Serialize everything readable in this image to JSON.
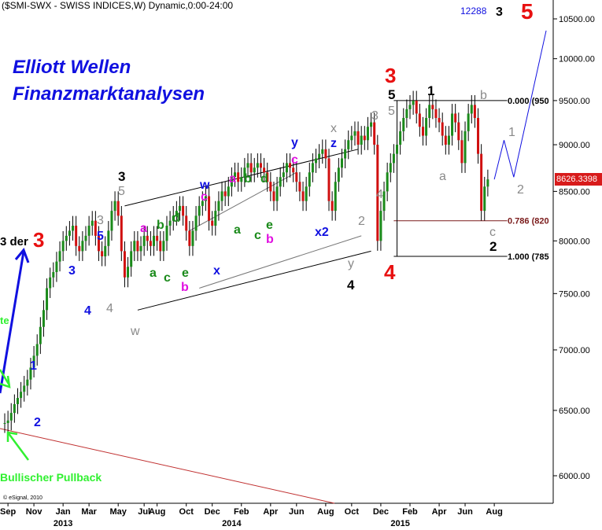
{
  "header": {
    "title": "($SMI-SWX - SWISS INDICES,W) Dynamic,0:00-24:00",
    "counter": "12288"
  },
  "titles": {
    "line1": "Elliott Wellen",
    "line2": "Finanzmarktanalysen"
  },
  "copyright": "© eSignal, 2010",
  "price_label": "8626.3398",
  "colors": {
    "black": "#000000",
    "red": "#e81010",
    "blue": "#1010e0",
    "gray": "#8a8a8a",
    "green": "#1a8a1a",
    "magenta": "#e010e0",
    "bright_green": "#30f030",
    "fib_line": "#7a1a1a",
    "trend_line": "#c03030"
  },
  "chart_data": {
    "type": "candlestick",
    "y_scale": "log",
    "ylim": [
      5750,
      11000
    ],
    "y_ticks": [
      6000,
      6500,
      7000,
      7500,
      8000,
      8500,
      9000,
      9500,
      10000,
      10500
    ],
    "y_tick_labels": [
      "6000.00",
      "6500.00",
      "7000.00",
      "7500.00",
      "8000.00",
      "8500.00",
      "9000.00",
      "9500.00",
      "10000.00",
      "10500.00"
    ],
    "x_month_labels": [
      "Sep",
      "Nov",
      "Jan",
      "Mar",
      "May",
      "Jul",
      "Aug",
      "Oct",
      "Dec",
      "Feb",
      "Apr",
      "Jun",
      "Aug",
      "Oct",
      "Dec",
      "Feb",
      "Apr",
      "Jun",
      "Aug"
    ],
    "x_month_weeks": [
      1,
      9,
      18,
      26,
      35,
      43,
      47,
      56,
      64,
      73,
      82,
      90,
      99,
      107,
      116,
      125,
      134,
      142,
      151
    ],
    "x_year_labels": [
      "2013",
      "2014",
      "2015"
    ],
    "x_year_weeks": [
      18,
      70,
      122
    ],
    "weekly_close": [
      6400,
      6420,
      6480,
      6550,
      6600,
      6650,
      6700,
      6750,
      6850,
      6950,
      7050,
      7200,
      7350,
      7550,
      7650,
      7700,
      7800,
      7900,
      8000,
      8050,
      8100,
      8150,
      7950,
      7900,
      8000,
      8050,
      8150,
      8200,
      8050,
      7900,
      7850,
      7950,
      8100,
      8300,
      8400,
      8250,
      7900,
      7650,
      7750,
      7900,
      8000,
      7900,
      7950,
      8050,
      8000,
      7950,
      8050,
      8000,
      7900,
      8000,
      8150,
      8200,
      8250,
      8300,
      8350,
      8250,
      8100,
      7950,
      8100,
      8250,
      8350,
      8400,
      8450,
      8200,
      8150,
      8300,
      8400,
      8500,
      8450,
      8550,
      8650,
      8700,
      8600,
      8650,
      8750,
      8800,
      8700,
      8750,
      8800,
      8750,
      8700,
      8600,
      8500,
      8400,
      8550,
      8650,
      8700,
      8800,
      8750,
      8700,
      8600,
      8500,
      8400,
      8550,
      8700,
      8800,
      8850,
      8900,
      8950,
      8850,
      8400,
      8300,
      8600,
      8750,
      8850,
      8950,
      9050,
      9100,
      9150,
      9000,
      9100,
      9050,
      9200,
      9250,
      9000,
      8000,
      8300,
      8500,
      8700,
      8800,
      8900,
      9000,
      9150,
      9300,
      9400,
      9450,
      9500,
      9350,
      9200,
      9100,
      9300,
      9450,
      9400,
      9300,
      9250,
      9100,
      9000,
      9100,
      9350,
      9250,
      9050,
      8800,
      9150,
      9350,
      9450,
      9300,
      8900,
      8300,
      8550,
      8626
    ],
    "fib_levels": [
      {
        "label": "0.000 (950",
        "value": 9500
      },
      {
        "label": "0.786 (820",
        "value": 8200
      },
      {
        "label": "1.000 (785",
        "value": 7850
      }
    ],
    "wave_labels": [
      {
        "text": "3",
        "color": "black",
        "week": 25
      },
      {
        "text": "5",
        "color": "gray",
        "week": 25
      },
      {
        "text": "3",
        "color": "gray",
        "week": 19
      },
      {
        "text": "5",
        "color": "blue",
        "week": 19
      },
      {
        "text": "3",
        "color": "blue",
        "week": 13
      },
      {
        "text": "4",
        "color": "blue",
        "week": 16
      },
      {
        "text": "4",
        "color": "gray",
        "week": 21
      },
      {
        "text": "1",
        "color": "blue",
        "week": 6
      },
      {
        "text": "2",
        "color": "blue",
        "week": 7
      },
      {
        "text": "w",
        "color": "gray",
        "week": 27
      },
      {
        "text": "a",
        "color": "magenta",
        "week": 28
      },
      {
        "text": "b",
        "color": "green",
        "week": 31
      },
      {
        "text": "d",
        "color": "green",
        "week": 34
      },
      {
        "text": "a",
        "color": "green",
        "week": 30
      },
      {
        "text": "c",
        "color": "green",
        "week": 33
      },
      {
        "text": "e",
        "color": "green",
        "week": 36
      },
      {
        "text": "b",
        "color": "magenta",
        "week": 36
      },
      {
        "text": "w",
        "color": "blue",
        "week": 40
      },
      {
        "text": "c",
        "color": "magenta",
        "week": 40
      },
      {
        "text": "x",
        "color": "blue",
        "week": 42
      },
      {
        "text": "a",
        "color": "magenta",
        "week": 45
      },
      {
        "text": "b",
        "color": "green",
        "week": 48
      },
      {
        "text": "d",
        "color": "green",
        "week": 51
      },
      {
        "text": "a",
        "color": "green",
        "week": 46
      },
      {
        "text": "c",
        "color": "green",
        "week": 50
      },
      {
        "text": "e",
        "color": "green",
        "week": 52
      },
      {
        "text": "b",
        "color": "magenta",
        "week": 52
      },
      {
        "text": "y",
        "color": "blue",
        "week": 57
      },
      {
        "text": "c",
        "color": "magenta",
        "week": 57
      },
      {
        "text": "x2",
        "color": "blue",
        "week": 62
      },
      {
        "text": "x",
        "color": "gray",
        "week": 65
      },
      {
        "text": "z",
        "color": "blue",
        "week": 65
      },
      {
        "text": "3",
        "color": "gray",
        "week": 72
      },
      {
        "text": "4",
        "color": "gray",
        "week": 74
      },
      {
        "text": "2",
        "color": "gray",
        "week": 70
      },
      {
        "text": "y",
        "color": "gray",
        "week": 68
      },
      {
        "text": "4",
        "color": "black",
        "week": 68
      },
      {
        "text": "3",
        "color": "red",
        "week": 76
      },
      {
        "text": "5",
        "color": "black",
        "week": 76
      },
      {
        "text": "5",
        "color": "gray",
        "week": 76
      },
      {
        "text": "4",
        "color": "red",
        "week": 76
      },
      {
        "text": "1",
        "color": "black",
        "week": 84
      },
      {
        "text": "a",
        "color": "gray",
        "week": 86
      },
      {
        "text": "b",
        "color": "gray",
        "week": 94
      },
      {
        "text": "c",
        "color": "gray",
        "week": 96
      },
      {
        "text": "2",
        "color": "black",
        "week": 96
      },
      {
        "text": "1",
        "color": "gray",
        "week": 100
      },
      {
        "text": "2",
        "color": "gray",
        "week": 102
      },
      {
        "text": "3",
        "color": "black",
        "week": 97
      },
      {
        "text": "5",
        "color": "red",
        "week": 103
      }
    ],
    "side_annotations": [
      {
        "text": "3 der",
        "color": "black"
      },
      {
        "text": "3",
        "color": "red"
      },
      {
        "text": "te",
        "color": "bright_green"
      },
      {
        "text": "Bullischer Pullback",
        "color": "bright_green"
      }
    ]
  }
}
